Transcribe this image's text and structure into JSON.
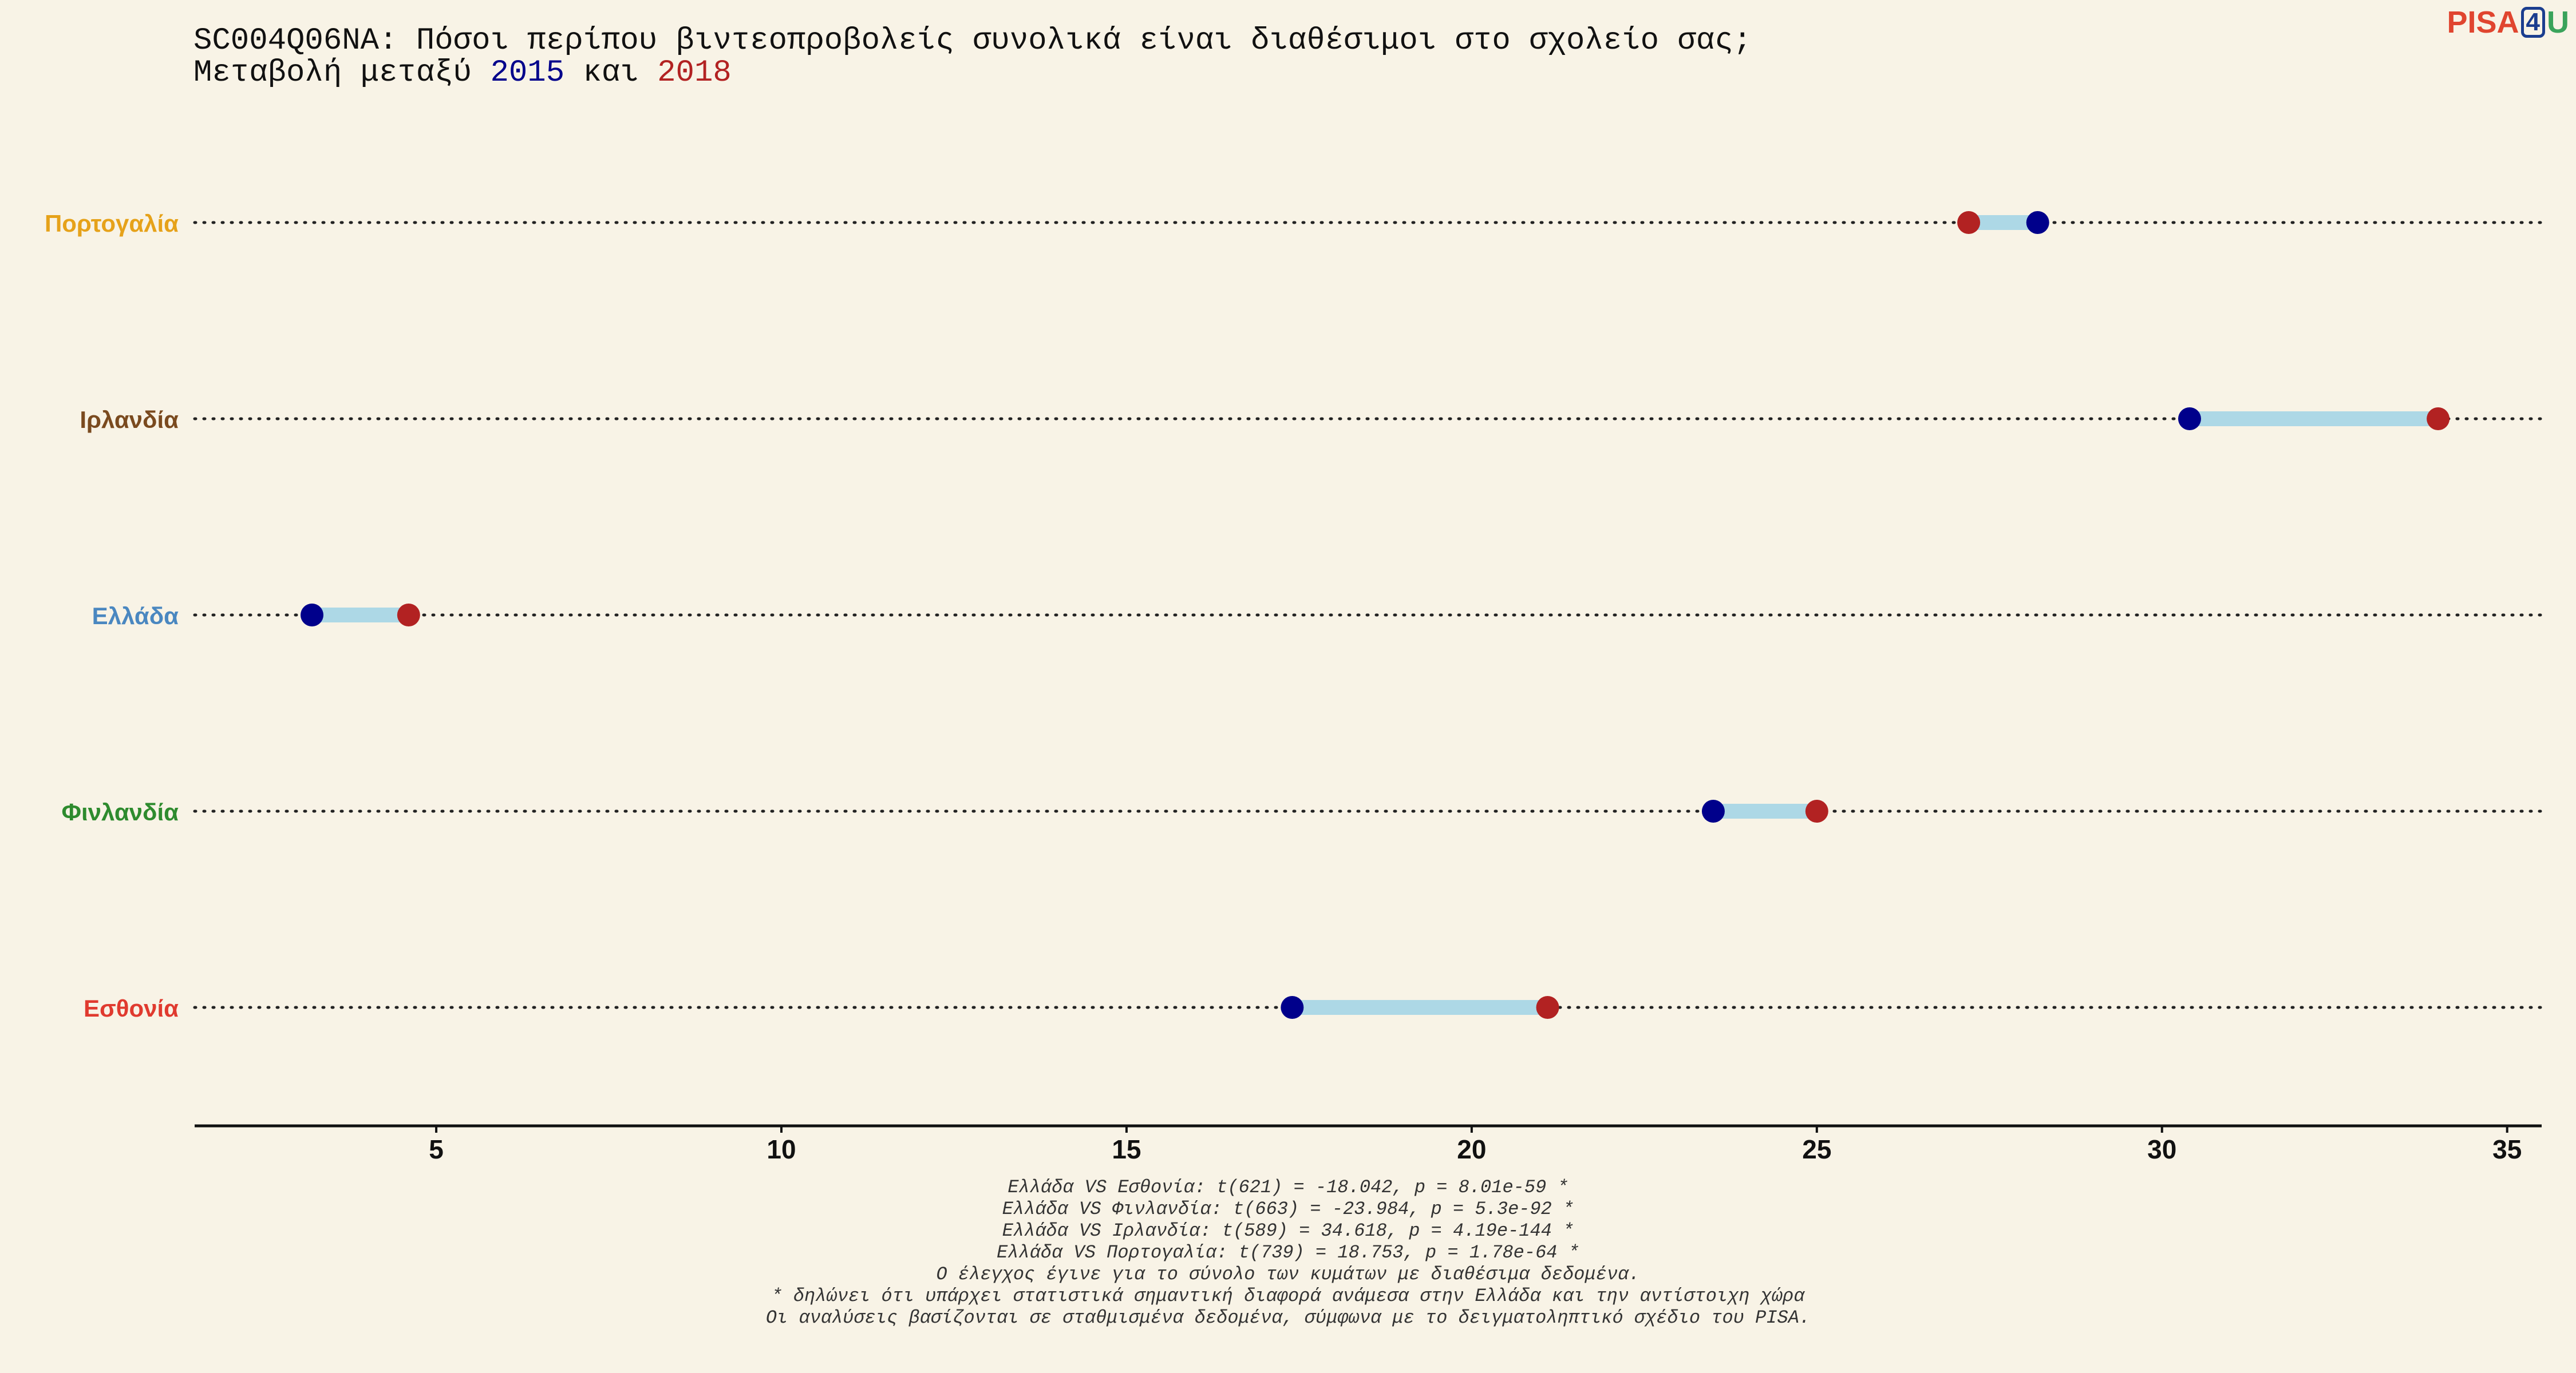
{
  "title": {
    "line1": "SC004Q06NA: Πόσοι περίπου βιντεοπροβολείς συνολικά είναι διαθέσιμοι στο σχολείο σας;",
    "line2_prefix": "Μεταβολή μεταξύ ",
    "year_a": "2015",
    "line2_middle": " και ",
    "year_b": "2018"
  },
  "logo": {
    "part1": "PISA",
    "part2": "4",
    "part3": "U"
  },
  "colors": {
    "background": "#f8f3e6",
    "year_2015": "#00008b",
    "year_2018": "#b22222",
    "connector": "#add8e6"
  },
  "chart_data": {
    "type": "dumbbell",
    "xlim": [
      1.5,
      35.5
    ],
    "xticks": [
      5,
      10,
      15,
      20,
      25,
      30,
      35
    ],
    "series_names": [
      "2015",
      "2018"
    ],
    "categories": [
      {
        "name": "Πορτογαλία",
        "color": "#e6a21a",
        "v2015": 28.2,
        "v2018": 27.2
      },
      {
        "name": "Ιρλανδία",
        "color": "#7a4a1f",
        "v2015": 30.4,
        "v2018": 34.0
      },
      {
        "name": "Ελλάδα",
        "color": "#4a87c0",
        "v2015": 3.2,
        "v2018": 4.6
      },
      {
        "name": "Φινλανδία",
        "color": "#2e8b2e",
        "v2015": 23.5,
        "v2018": 25.0
      },
      {
        "name": "Εσθονία",
        "color": "#e03a2f",
        "v2015": 17.4,
        "v2018": 21.1
      }
    ]
  },
  "footnotes": [
    "Ελλάδα VS Εσθονία: t(621) = -18.042, p = 8.01e-59 *",
    "Ελλάδα VS Φινλανδία: t(663) = -23.984, p = 5.3e-92 *",
    "Ελλάδα VS Ιρλανδία: t(589) = 34.618, p = 4.19e-144 *",
    "Ελλάδα VS Πορτογαλία: t(739) = 18.753, p = 1.78e-64 *",
    "Ο έλεγχος έγινε για το σύνολο των κυμάτων με διαθέσιμα δεδομένα.",
    "* δηλώνει ότι υπάρχει στατιστικά σημαντική διαφορά ανάμεσα στην Ελλάδα και την αντίστοιχη χώρα",
    "Οι αναλύσεις βασίζονται σε σταθμισμένα δεδομένα, σύμφωνα με το δειγματοληπτικό σχέδιο του PISA."
  ]
}
